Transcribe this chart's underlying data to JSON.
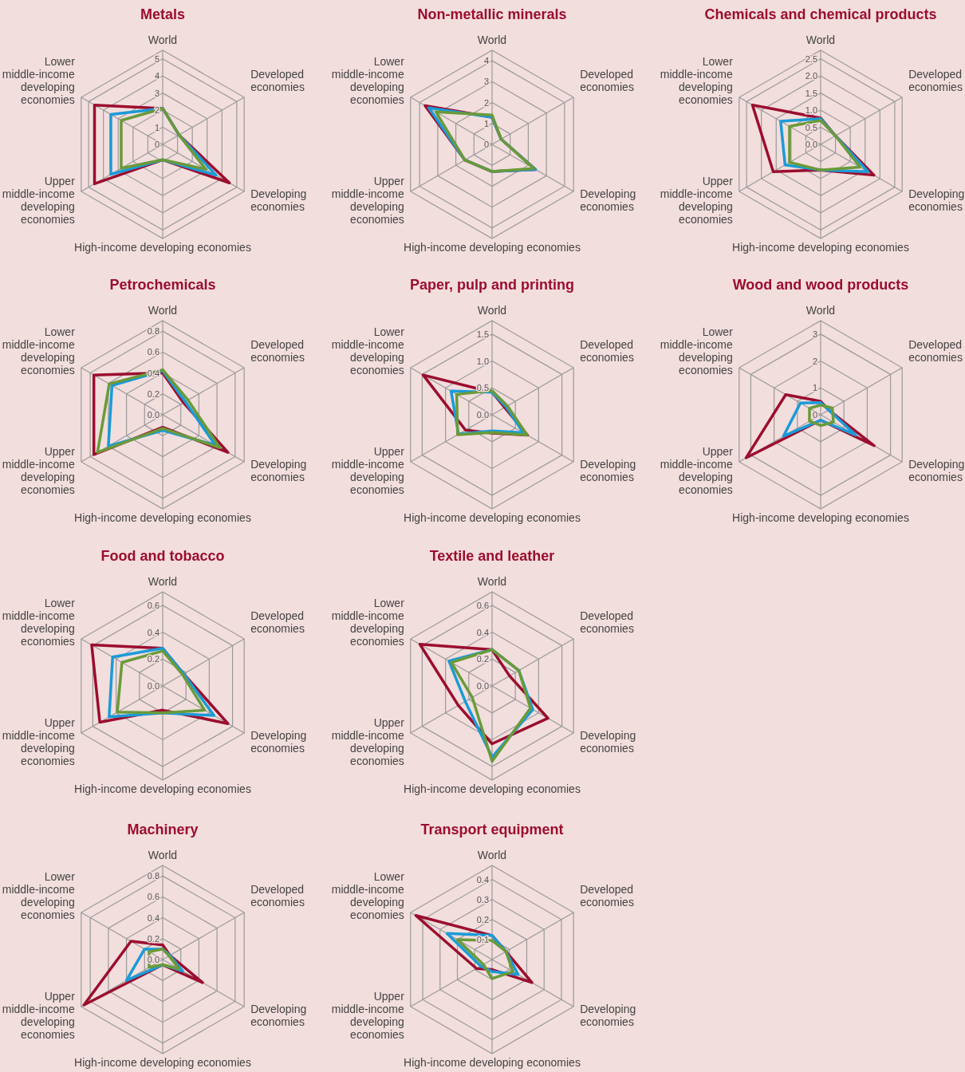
{
  "chart_data": [
    {
      "type": "radar",
      "title": "Metals",
      "categories": [
        "World",
        "Developed economies",
        "Developing economies",
        "High-income developing economies",
        "Upper middle-income developing economies",
        "Lower middle-income developing economies"
      ],
      "ylim": [
        0,
        5.5
      ],
      "yticks": [
        0,
        1,
        2,
        3,
        4,
        5
      ],
      "series": [
        {
          "color": "#9b0d2e",
          "values": [
            2.1,
            1.1,
            4.5,
            0.9,
            4.6,
            4.6
          ]
        },
        {
          "color": "#1a9bd7",
          "values": [
            2.1,
            1.1,
            3.6,
            0.9,
            3.5,
            3.5
          ]
        },
        {
          "color": "#6a9a3a",
          "values": [
            2.1,
            1.1,
            2.9,
            0.9,
            2.8,
            2.8
          ]
        }
      ]
    },
    {
      "type": "radar",
      "title": "Non-metallic minerals",
      "categories": [
        "World",
        "Developed economies",
        "Developing economies",
        "High-income developing economies",
        "Upper middle-income developing economies",
        "Lower middle-income developing economies"
      ],
      "ylim": [
        0,
        4.5
      ],
      "yticks": [
        0,
        1,
        2,
        3,
        4
      ],
      "series": [
        {
          "color": "#9b0d2e",
          "values": [
            1.3,
            0.5,
            2.4,
            1.3,
            1.5,
            3.7
          ]
        },
        {
          "color": "#1a9bd7",
          "values": [
            1.3,
            0.5,
            2.4,
            1.3,
            1.5,
            3.5
          ]
        },
        {
          "color": "#6a9a3a",
          "values": [
            1.4,
            0.5,
            2.3,
            1.3,
            1.5,
            3.1
          ]
        }
      ]
    },
    {
      "type": "radar",
      "title": "Chemicals and chemical products",
      "categories": [
        "World",
        "Developed economies",
        "Developing economies",
        "High-income developing economies",
        "Upper middle-income developing economies",
        "Lower middle-income developing economies"
      ],
      "ylim": [
        0,
        2.75
      ],
      "yticks": [
        {
          "value": 0,
          "label": "0.0"
        },
        0.5,
        {
          "value": 1,
          "label": "1.0"
        },
        1.5,
        {
          "value": 2,
          "label": "2.0"
        },
        2.5
      ],
      "series": [
        {
          "color": "#9b0d2e",
          "values": [
            0.77,
            0.5,
            1.8,
            0.75,
            1.6,
            2.3
          ]
        },
        {
          "color": "#1a9bd7",
          "values": [
            0.75,
            0.5,
            1.6,
            0.75,
            1.2,
            1.35
          ]
        },
        {
          "color": "#6a9a3a",
          "values": [
            0.7,
            0.5,
            1.33,
            0.75,
            1.05,
            1.05
          ]
        }
      ]
    },
    {
      "type": "radar",
      "title": "Petrochemicals",
      "categories": [
        "World",
        "Developed economies",
        "Developing economies",
        "High-income developing economies",
        "Upper middle-income developing economies",
        "Lower middle-income developing economies"
      ],
      "ylim": [
        0,
        0.9
      ],
      "yticks": [
        {
          "value": 0,
          "label": "0.0"
        },
        0.2,
        0.4,
        0.6,
        0.8
      ],
      "series": [
        {
          "color": "#9b0d2e",
          "values": [
            0.4,
            0.23,
            0.72,
            0.12,
            0.76,
            0.76
          ]
        },
        {
          "color": "#1a9bd7",
          "values": [
            0.42,
            0.25,
            0.58,
            0.15,
            0.6,
            0.56
          ]
        },
        {
          "color": "#6a9a3a",
          "values": [
            0.43,
            0.28,
            0.63,
            0.13,
            0.72,
            0.59
          ]
        }
      ]
    },
    {
      "type": "radar",
      "title": "Paper, pulp and printing",
      "categories": [
        "World",
        "Developed economies",
        "Developing economies",
        "High-income developing economies",
        "Upper middle-income developing economies",
        "Lower middle-income developing economies"
      ],
      "ylim": [
        0,
        1.75
      ],
      "yticks": [
        {
          "value": 0,
          "label": "0.0"
        },
        0.5,
        {
          "value": 1,
          "label": "1.0"
        },
        1.5
      ],
      "series": [
        {
          "color": "#9b0d2e",
          "values": [
            0.42,
            0.27,
            0.76,
            0.34,
            0.57,
            1.48
          ]
        },
        {
          "color": "#1a9bd7",
          "values": [
            0.42,
            0.3,
            0.67,
            0.3,
            0.72,
            0.88
          ]
        },
        {
          "color": "#6a9a3a",
          "values": [
            0.45,
            0.33,
            0.75,
            0.33,
            0.74,
            0.76
          ]
        }
      ]
    },
    {
      "type": "radar",
      "title": "Wood and wood products",
      "categories": [
        "World",
        "Developed economies",
        "Developing economies",
        "High-income developing economies",
        "Upper middle-income developing economies",
        "Lower middle-income developing economies"
      ],
      "ylim": [
        0,
        3.5
      ],
      "yticks": [
        0,
        1,
        2,
        3
      ],
      "series": [
        {
          "color": "#9b0d2e",
          "values": [
            0.5,
            0.35,
            2.3,
            0.2,
            3.2,
            1.5
          ]
        },
        {
          "color": "#1a9bd7",
          "values": [
            0.45,
            0.35,
            1.5,
            0.2,
            1.6,
            0.87
          ]
        },
        {
          "color": "#6a9a3a",
          "values": [
            0.36,
            0.5,
            0.55,
            0.4,
            0.48,
            0.48
          ]
        }
      ]
    },
    {
      "type": "radar",
      "title": "Food and tobacco",
      "categories": [
        "World",
        "Developed economies",
        "Developing economies",
        "High-income developing economies",
        "Upper middle-income developing economies",
        "Lower middle-income developing economies"
      ],
      "ylim": [
        0,
        0.7
      ],
      "yticks": [
        {
          "value": 0,
          "label": "0.0"
        },
        0.2,
        0.4,
        0.6
      ],
      "series": [
        {
          "color": "#9b0d2e",
          "values": [
            0.28,
            0.18,
            0.56,
            0.18,
            0.54,
            0.61
          ]
        },
        {
          "color": "#1a9bd7",
          "values": [
            0.28,
            0.18,
            0.44,
            0.2,
            0.46,
            0.43
          ]
        },
        {
          "color": "#6a9a3a",
          "values": [
            0.26,
            0.17,
            0.36,
            0.2,
            0.39,
            0.35
          ]
        }
      ]
    },
    {
      "type": "radar",
      "title": "Textile and leather",
      "categories": [
        "World",
        "Developed economies",
        "Developing economies",
        "High-income developing economies",
        "Upper middle-income developing economies",
        "Lower middle-income developing economies"
      ],
      "ylim": [
        0,
        0.7
      ],
      "yticks": [
        {
          "value": 0,
          "label": "0.0"
        },
        0.2,
        0.4,
        0.6
      ],
      "series": [
        {
          "color": "#9b0d2e",
          "values": [
            0.27,
            0.15,
            0.48,
            0.43,
            0.29,
            0.62
          ]
        },
        {
          "color": "#1a9bd7",
          "values": [
            0.27,
            0.23,
            0.35,
            0.53,
            0.23,
            0.37
          ]
        },
        {
          "color": "#6a9a3a",
          "values": [
            0.27,
            0.23,
            0.33,
            0.56,
            0.17,
            0.35
          ]
        }
      ]
    },
    {
      "type": "radar",
      "title": "Machinery",
      "categories": [
        "World",
        "Developed economies",
        "Developing economies",
        "High-income developing economies",
        "Upper middle-income developing economies",
        "Lower middle-income developing economies"
      ],
      "ylim": [
        0,
        0.9
      ],
      "yticks": [
        {
          "value": 0,
          "label": "0.0"
        },
        0.2,
        0.4,
        0.6,
        0.8
      ],
      "series": [
        {
          "color": "#9b0d2e",
          "values": [
            0.14,
            0.08,
            0.44,
            0.05,
            0.87,
            0.35
          ]
        },
        {
          "color": "#1a9bd7",
          "values": [
            0.1,
            0.08,
            0.22,
            0.05,
            0.4,
            0.2
          ]
        },
        {
          "color": "#6a9a3a",
          "values": [
            0.1,
            0.07,
            0.18,
            0.05,
            0.15,
            0.15
          ]
        }
      ]
    },
    {
      "type": "radar",
      "title": "Transport equipment",
      "categories": [
        "World",
        "Developed economies",
        "Developing economies",
        "High-income developing economies",
        "Upper middle-income developing economies",
        "Lower middle-income developing economies"
      ],
      "ylim": [
        0,
        0.47
      ],
      "yticks": [
        0.1,
        0.2,
        0.3,
        0.4
      ],
      "series": [
        {
          "color": "#9b0d2e",
          "values": [
            0.12,
            0.08,
            0.23,
            0.05,
            0.09,
            0.44
          ]
        },
        {
          "color": "#1a9bd7",
          "values": [
            0.12,
            0.08,
            0.15,
            0.06,
            0.065,
            0.26
          ]
        },
        {
          "color": "#6a9a3a",
          "values": [
            0.095,
            0.08,
            0.12,
            0.095,
            0.05,
            0.2
          ]
        }
      ]
    }
  ]
}
